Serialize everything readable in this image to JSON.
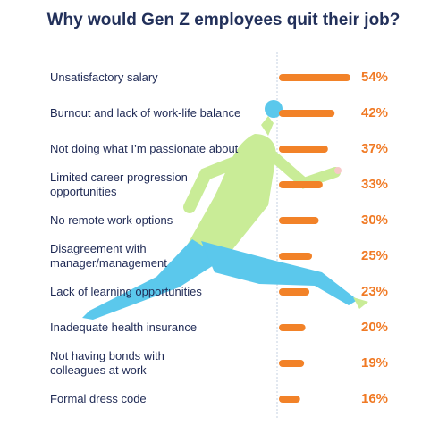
{
  "title": "Why would Gen Z employees quit their job?",
  "colors": {
    "title": "#22305a",
    "label": "#1f2a55",
    "bar": "#f28228",
    "percent": "#f07a25",
    "underline": "#b9e36a",
    "divider": "#b9c7d8",
    "figure_shirt": "#c9ec97",
    "figure_pants": "#5bc8ec"
  },
  "chart_data": {
    "type": "bar",
    "orientation": "horizontal",
    "title": "Why would Gen Z employees quit their job?",
    "unit": "%",
    "xlim": [
      0,
      54
    ],
    "categories": [
      [
        "Unsatisfactory salary"
      ],
      [
        "Burnout and lack of work-life balance"
      ],
      [
        "Not doing what I’m passionate about"
      ],
      [
        "Limited career progression",
        "opportunities"
      ],
      [
        "No remote work options"
      ],
      [
        "Disagreement with",
        "manager/management"
      ],
      [
        "Lack of learning opportunities"
      ],
      [
        "Inadequate health insurance"
      ],
      [
        "Not having bonds with",
        "colleagues at work"
      ],
      [
        "Formal dress code"
      ]
    ],
    "values": [
      54,
      42,
      37,
      33,
      30,
      25,
      23,
      20,
      19,
      16
    ],
    "value_labels": [
      "54%",
      "42%",
      "37%",
      "33%",
      "30%",
      "25%",
      "23%",
      "20%",
      "19%",
      "16%"
    ]
  }
}
